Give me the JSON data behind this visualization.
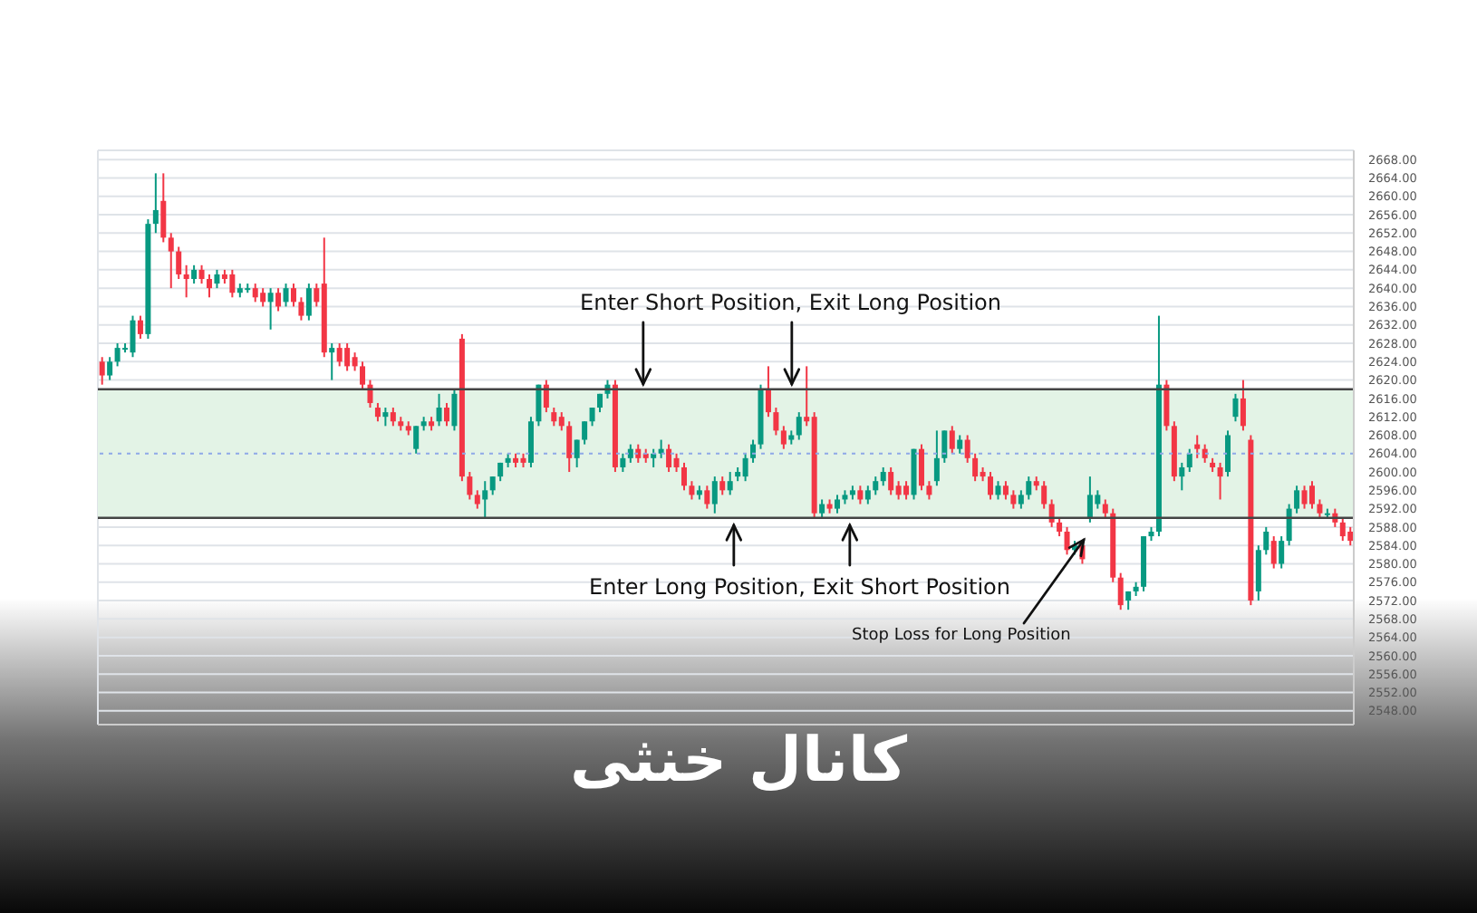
{
  "chart_data": {
    "type": "candlestick",
    "title": "کانال خنثی",
    "annotations": [
      "Enter Short Position, Exit Long Position",
      "Enter Long Position, Exit Short Position",
      "Stop Loss for Long Position"
    ],
    "categories": [
      null,
      null,
      null,
      null,
      null,
      null,
      null,
      null,
      null,
      null,
      null,
      null,
      null,
      null,
      null,
      null,
      null,
      null,
      null,
      null,
      null,
      null,
      null,
      null,
      null,
      null,
      null,
      null,
      null,
      null,
      null,
      null,
      null,
      null,
      null,
      null,
      null,
      null,
      null,
      null,
      null,
      null,
      null,
      null,
      null,
      null,
      null,
      null,
      null,
      null,
      null,
      null,
      null,
      null,
      null,
      null,
      null,
      null,
      null,
      null,
      null,
      null,
      null,
      null,
      null,
      null,
      null,
      null,
      null,
      null,
      null,
      null,
      null,
      null,
      null,
      null,
      null,
      null,
      null,
      null,
      null,
      null,
      null,
      null,
      null,
      null,
      null,
      null,
      null,
      null,
      null,
      null,
      null,
      null,
      null,
      null,
      null,
      null,
      null,
      null,
      null,
      null,
      null,
      null,
      null,
      null,
      null,
      null,
      null,
      null,
      null,
      null,
      null,
      null,
      null,
      null,
      null,
      null,
      null,
      null,
      null,
      null,
      null,
      null,
      null,
      null,
      null,
      null,
      null,
      null,
      null,
      null,
      null,
      null,
      null,
      null,
      null,
      null,
      null,
      null,
      null,
      null,
      null,
      null,
      null,
      null,
      null,
      null,
      null,
      null,
      null,
      null,
      null,
      null,
      null,
      null,
      null,
      null,
      null,
      null,
      null,
      null,
      null,
      null
    ],
    "ohlc": [
      [
        2624,
        2625,
        2619,
        2621
      ],
      [
        2621,
        2625,
        2620,
        2624
      ],
      [
        2624,
        2628,
        2623,
        2627
      ],
      [
        2627,
        2628,
        2626,
        2627
      ],
      [
        2626,
        2634,
        2625,
        2633
      ],
      [
        2633,
        2634,
        2629,
        2630
      ],
      [
        2630,
        2655,
        2629,
        2654
      ],
      [
        2654,
        2665,
        2652,
        2657
      ],
      [
        2659,
        2665,
        2650,
        2651
      ],
      [
        2651,
        2652,
        2640,
        2648
      ],
      [
        2648,
        2649,
        2642,
        2643
      ],
      [
        2643,
        2645,
        2638,
        2642
      ],
      [
        2642,
        2645,
        2641,
        2644
      ],
      [
        2644,
        2645,
        2641,
        2642
      ],
      [
        2642,
        2643,
        2638,
        2640
      ],
      [
        2641,
        2644,
        2640,
        2643
      ],
      [
        2643,
        2644,
        2641,
        2642
      ],
      [
        2643,
        2644,
        2638,
        2639
      ],
      [
        2639,
        2641,
        2638,
        2640
      ],
      [
        2640,
        2641,
        2639,
        2640
      ],
      [
        2640,
        2641,
        2637,
        2638
      ],
      [
        2639,
        2640,
        2636,
        2637
      ],
      [
        2637,
        2640,
        2631,
        2639
      ],
      [
        2639,
        2640,
        2635,
        2636
      ],
      [
        2637,
        2641,
        2636,
        2640
      ],
      [
        2640,
        2641,
        2636,
        2637
      ],
      [
        2637,
        2638,
        2633,
        2634
      ],
      [
        2634,
        2641,
        2633,
        2640
      ],
      [
        2640,
        2641,
        2636,
        2637
      ],
      [
        2641,
        2651,
        2625,
        2626
      ],
      [
        2626,
        2628,
        2620,
        2627
      ],
      [
        2627,
        2628,
        2623,
        2624
      ],
      [
        2627,
        2628,
        2622,
        2623
      ],
      [
        2625,
        2626,
        2622,
        2623
      ],
      [
        2623,
        2624,
        2618,
        2619
      ],
      [
        2619,
        2620,
        2614,
        2615
      ],
      [
        2614,
        2615,
        2611,
        2612
      ],
      [
        2612,
        2614,
        2610,
        2613
      ],
      [
        2613,
        2614,
        2610,
        2611
      ],
      [
        2611,
        2612,
        2609,
        2610
      ],
      [
        2610,
        2611,
        2608,
        2609
      ],
      [
        2605,
        2610,
        2604,
        2610
      ],
      [
        2610,
        2612,
        2609,
        2611
      ],
      [
        2611,
        2612,
        2609,
        2610
      ],
      [
        2611,
        2617,
        2610,
        2614
      ],
      [
        2614,
        2615,
        2610,
        2611
      ],
      [
        2610,
        2618,
        2609,
        2617
      ],
      [
        2629,
        2630,
        2598,
        2599
      ],
      [
        2599,
        2600,
        2594,
        2595
      ],
      [
        2595,
        2596,
        2592,
        2593
      ],
      [
        2594,
        2598,
        2590,
        2596
      ],
      [
        2596,
        2599,
        2595,
        2599
      ],
      [
        2599,
        2602,
        2598,
        2602
      ],
      [
        2602,
        2604,
        2601,
        2603
      ],
      [
        2603,
        2604,
        2601,
        2602
      ],
      [
        2603,
        2604,
        2601,
        2602
      ],
      [
        2602,
        2612,
        2601,
        2611
      ],
      [
        2611,
        2619,
        2610,
        2619
      ],
      [
        2619,
        2620,
        2613,
        2614
      ],
      [
        2613,
        2614,
        2610,
        2611
      ],
      [
        2612,
        2613,
        2609,
        2610
      ],
      [
        2610,
        2611,
        2600,
        2603
      ],
      [
        2603,
        2607,
        2601,
        2607
      ],
      [
        2607,
        2611,
        2606,
        2611
      ],
      [
        2611,
        2614,
        2610,
        2614
      ],
      [
        2614,
        2617,
        2613,
        2617
      ],
      [
        2617,
        2620,
        2616,
        2619
      ],
      [
        2619,
        2620,
        2600,
        2601
      ],
      [
        2601,
        2604,
        2600,
        2603
      ],
      [
        2603,
        2606,
        2602,
        2605
      ],
      [
        2605,
        2606,
        2602,
        2603
      ],
      [
        2604,
        2605,
        2602,
        2603
      ],
      [
        2603,
        2605,
        2601,
        2604
      ],
      [
        2604,
        2607,
        2603,
        2605
      ],
      [
        2605,
        2606,
        2600,
        2601
      ],
      [
        2603,
        2604,
        2600,
        2601
      ],
      [
        2601,
        2602,
        2596,
        2597
      ],
      [
        2597,
        2598,
        2594,
        2595
      ],
      [
        2595,
        2597,
        2594,
        2596
      ],
      [
        2596,
        2597,
        2592,
        2593
      ],
      [
        2593,
        2599,
        2591,
        2598
      ],
      [
        2598,
        2599,
        2595,
        2596
      ],
      [
        2596,
        2600,
        2595,
        2598
      ],
      [
        2599,
        2601,
        2598,
        2600
      ],
      [
        2599,
        2604,
        2598,
        2603
      ],
      [
        2603,
        2607,
        2602,
        2606
      ],
      [
        2606,
        2619,
        2605,
        2618
      ],
      [
        2618,
        2623,
        2612,
        2613
      ],
      [
        2613,
        2614,
        2608,
        2609
      ],
      [
        2609,
        2610,
        2605,
        2606
      ],
      [
        2607,
        2609,
        2606,
        2608
      ],
      [
        2608,
        2613,
        2607,
        2612
      ],
      [
        2612,
        2623,
        2610,
        2611
      ],
      [
        2612,
        2613,
        2590,
        2591
      ],
      [
        2591,
        2594,
        2590,
        2593
      ],
      [
        2593,
        2594,
        2591,
        2592
      ],
      [
        2592,
        2595,
        2591,
        2594
      ],
      [
        2594,
        2596,
        2593,
        2595
      ],
      [
        2595,
        2597,
        2594,
        2596
      ],
      [
        2596,
        2597,
        2593,
        2594
      ],
      [
        2594,
        2597,
        2593,
        2596
      ],
      [
        2596,
        2599,
        2595,
        2598
      ],
      [
        2598,
        2601,
        2597,
        2600
      ],
      [
        2600,
        2601,
        2595,
        2596
      ],
      [
        2597,
        2598,
        2594,
        2595
      ],
      [
        2597,
        2598,
        2594,
        2595
      ],
      [
        2595,
        2605,
        2594,
        2605
      ],
      [
        2605,
        2606,
        2596,
        2597
      ],
      [
        2597,
        2598,
        2594,
        2595
      ],
      [
        2598,
        2609,
        2597,
        2603
      ],
      [
        2603,
        2609,
        2602,
        2609
      ],
      [
        2609,
        2610,
        2604,
        2605
      ],
      [
        2605,
        2608,
        2604,
        2607
      ],
      [
        2607,
        2608,
        2602,
        2603
      ],
      [
        2603,
        2604,
        2598,
        2599
      ],
      [
        2600,
        2601,
        2598,
        2599
      ],
      [
        2599,
        2600,
        2594,
        2595
      ],
      [
        2595,
        2598,
        2594,
        2597
      ],
      [
        2597,
        2598,
        2594,
        2595
      ],
      [
        2595,
        2596,
        2592,
        2593
      ],
      [
        2593,
        2596,
        2592,
        2595
      ],
      [
        2595,
        2599,
        2594,
        2598
      ],
      [
        2598,
        2599,
        2596,
        2597
      ],
      [
        2597,
        2598,
        2592,
        2593
      ],
      [
        2593,
        2594,
        2588,
        2589
      ],
      [
        2589,
        2590,
        2586,
        2587
      ],
      [
        2587,
        2588,
        2582,
        2583
      ],
      [
        2583,
        2585,
        2582,
        2584
      ],
      [
        2584,
        2585,
        2580,
        2581
      ],
      [
        2590,
        2599,
        2589,
        2595
      ],
      [
        2593,
        2596,
        2592,
        2595
      ],
      [
        2593,
        2594,
        2590,
        2591
      ],
      [
        2591,
        2592,
        2576,
        2577
      ],
      [
        2577,
        2578,
        2570,
        2571
      ],
      [
        2572,
        2574,
        2570,
        2574
      ],
      [
        2574,
        2576,
        2573,
        2575
      ],
      [
        2575,
        2586,
        2574,
        2586
      ],
      [
        2586,
        2588,
        2585,
        2587
      ],
      [
        2587,
        2634,
        2586,
        2619
      ],
      [
        2619,
        2620,
        2609,
        2610
      ],
      [
        2610,
        2611,
        2598,
        2599
      ],
      [
        2599,
        2602,
        2596,
        2601
      ],
      [
        2601,
        2605,
        2600,
        2604
      ],
      [
        2606,
        2608,
        2603,
        2605
      ],
      [
        2605,
        2606,
        2602,
        2603
      ],
      [
        2602,
        2603,
        2600,
        2601
      ],
      [
        2601,
        2602,
        2594,
        2599
      ],
      [
        2600,
        2609,
        2599,
        2608
      ],
      [
        2612,
        2617,
        2611,
        2616
      ],
      [
        2616,
        2620,
        2609,
        2610
      ],
      [
        2607,
        2608,
        2571,
        2572
      ],
      [
        2574,
        2584,
        2572,
        2583
      ],
      [
        2583,
        2588,
        2582,
        2587
      ],
      [
        2585,
        2586,
        2579,
        2580
      ],
      [
        2580,
        2586,
        2579,
        2585
      ],
      [
        2585,
        2593,
        2584,
        2592
      ],
      [
        2592,
        2597,
        2591,
        2596
      ],
      [
        2596,
        2597,
        2592,
        2593
      ],
      [
        2597,
        2598,
        2592,
        2593
      ],
      [
        2593,
        2594,
        2590,
        2591
      ],
      [
        2591,
        2592,
        2590,
        2591
      ],
      [
        2591,
        2592,
        2588,
        2589
      ],
      [
        2589,
        2590,
        2585,
        2586
      ],
      [
        2587,
        2588,
        2584,
        2585
      ]
    ],
    "colors": [
      "#f23645",
      "#089981",
      "#089981",
      "#089981",
      "#089981",
      "#f23645",
      "#089981",
      "#089981",
      "#f23645",
      "#f23645",
      "#f23645",
      "#f23645",
      "#089981",
      "#f23645",
      "#f23645",
      "#089981",
      "#f23645",
      "#f23645",
      "#089981",
      "#089981",
      "#f23645",
      "#f23645",
      "#089981",
      "#f23645",
      "#089981",
      "#f23645",
      "#f23645",
      "#089981",
      "#f23645",
      "#f23645",
      "#089981",
      "#f23645",
      "#f23645",
      "#f23645",
      "#f23645",
      "#f23645",
      "#f23645",
      "#089981",
      "#f23645",
      "#f23645",
      "#f23645",
      "#089981",
      "#089981",
      "#f23645",
      "#089981",
      "#f23645",
      "#089981",
      "#f23645",
      "#f23645",
      "#f23645",
      "#089981",
      "#089981",
      "#089981",
      "#089981",
      "#f23645",
      "#f23645",
      "#089981",
      "#089981",
      "#f23645",
      "#f23645",
      "#f23645",
      "#f23645",
      "#089981",
      "#089981",
      "#089981",
      "#089981",
      "#089981",
      "#f23645",
      "#089981",
      "#089981",
      "#f23645",
      "#f23645",
      "#089981",
      "#089981",
      "#f23645",
      "#f23645",
      "#f23645",
      "#f23645",
      "#089981",
      "#f23645",
      "#089981",
      "#f23645",
      "#089981",
      "#089981",
      "#089981",
      "#089981",
      "#089981",
      "#f23645",
      "#f23645",
      "#f23645",
      "#089981",
      "#089981",
      "#f23645",
      "#f23645",
      "#089981",
      "#f23645",
      "#089981",
      "#089981",
      "#089981",
      "#f23645",
      "#089981",
      "#089981",
      "#089981",
      "#f23645",
      "#f23645",
      "#f23645",
      "#089981",
      "#f23645",
      "#f23645",
      "#089981",
      "#089981",
      "#f23645",
      "#089981",
      "#f23645",
      "#f23645",
      "#f23645",
      "#f23645",
      "#089981",
      "#f23645",
      "#f23645",
      "#089981",
      "#089981",
      "#f23645",
      "#f23645",
      "#f23645",
      "#f23645",
      "#f23645",
      "#089981",
      "#f23645",
      "#089981",
      "#089981",
      "#f23645",
      "#f23645",
      "#f23645",
      "#089981",
      "#089981",
      "#089981",
      "#089981",
      "#089981",
      "#f23645",
      "#f23645",
      "#089981",
      "#089981",
      "#f23645",
      "#f23645",
      "#f23645",
      "#f23645",
      "#089981",
      "#089981",
      "#f23645",
      "#f23645",
      "#089981",
      "#089981",
      "#f23645",
      "#089981",
      "#089981",
      "#089981",
      "#f23645",
      "#f23645",
      "#f23645",
      "#089981",
      "#f23645",
      "#f23645",
      "#f23645"
    ],
    "ylim": [
      2545,
      2670
    ],
    "yticks": [
      {
        "value": 2548,
        "label": "2548.00"
      },
      {
        "value": 2552,
        "label": "2552.00"
      },
      {
        "value": 2556,
        "label": "2556.00"
      },
      {
        "value": 2560,
        "label": "2560.00"
      },
      {
        "value": 2564,
        "label": "2564.00"
      },
      {
        "value": 2568,
        "label": "2568.00"
      },
      {
        "value": 2572,
        "label": "2572.00"
      },
      {
        "value": 2576,
        "label": "2576.00"
      },
      {
        "value": 2580,
        "label": "2580.00"
      },
      {
        "value": 2584,
        "label": "2584.00"
      },
      {
        "value": 2588,
        "label": "2588.00"
      },
      {
        "value": 2592,
        "label": "2592.00"
      },
      {
        "value": 2596,
        "label": "2596.00"
      },
      {
        "value": 2600,
        "label": "2600.00"
      },
      {
        "value": 2604,
        "label": "2604.00"
      },
      {
        "value": 2608,
        "label": "2608.00"
      },
      {
        "value": 2612,
        "label": "2612.00"
      },
      {
        "value": 2616,
        "label": "2616.00"
      },
      {
        "value": 2620,
        "label": "2620.00"
      },
      {
        "value": 2624,
        "label": "2624.00"
      },
      {
        "value": 2628,
        "label": "2628.00"
      },
      {
        "value": 2632,
        "label": "2632.00"
      },
      {
        "value": 2636,
        "label": "2636.00"
      },
      {
        "value": 2640,
        "label": "2640.00"
      },
      {
        "value": 2644,
        "label": "2644.00"
      },
      {
        "value": 2648,
        "label": "2648.00"
      },
      {
        "value": 2652,
        "label": "2652.00"
      },
      {
        "value": 2656,
        "label": "2656.00"
      },
      {
        "value": 2660,
        "label": "2660.00"
      },
      {
        "value": 2664,
        "label": "2664.00"
      },
      {
        "value": 2668,
        "label": "2668.00"
      }
    ],
    "bands": [
      {
        "axis": "y",
        "from": 2590,
        "to": 2618,
        "color": "#e3f3e6"
      }
    ],
    "ref_lines": [
      {
        "axis": "y",
        "value": 2618,
        "color": "#444444"
      },
      {
        "axis": "y",
        "value": 2590,
        "color": "#444444"
      },
      {
        "axis": "y",
        "value": 2604,
        "color": "#8fa8e8",
        "line_style": "dotted"
      }
    ],
    "grid": true,
    "tick_labels": "y"
  }
}
